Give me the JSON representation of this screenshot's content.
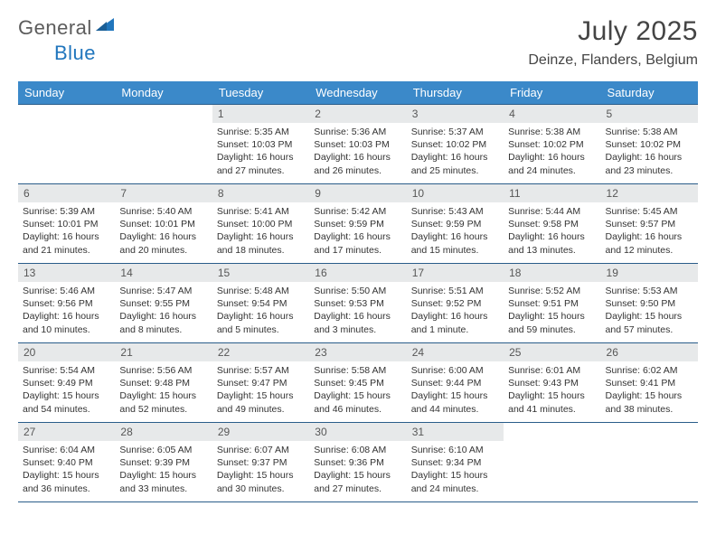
{
  "logo": {
    "word1": "General",
    "word2": "Blue"
  },
  "title": "July 2025",
  "location": "Deinze, Flanders, Belgium",
  "colors": {
    "header_bg": "#3b89c9",
    "header_text": "#ffffff",
    "daynum_bg": "#e7e9ea",
    "border": "#2a5d8a",
    "logo_gray": "#5c5c5c",
    "logo_blue": "#2176bd"
  },
  "day_names": [
    "Sunday",
    "Monday",
    "Tuesday",
    "Wednesday",
    "Thursday",
    "Friday",
    "Saturday"
  ],
  "weeks": [
    [
      null,
      null,
      {
        "n": "1",
        "sunrise": "5:35 AM",
        "sunset": "10:03 PM",
        "daylight": "16 hours and 27 minutes."
      },
      {
        "n": "2",
        "sunrise": "5:36 AM",
        "sunset": "10:03 PM",
        "daylight": "16 hours and 26 minutes."
      },
      {
        "n": "3",
        "sunrise": "5:37 AM",
        "sunset": "10:02 PM",
        "daylight": "16 hours and 25 minutes."
      },
      {
        "n": "4",
        "sunrise": "5:38 AM",
        "sunset": "10:02 PM",
        "daylight": "16 hours and 24 minutes."
      },
      {
        "n": "5",
        "sunrise": "5:38 AM",
        "sunset": "10:02 PM",
        "daylight": "16 hours and 23 minutes."
      }
    ],
    [
      {
        "n": "6",
        "sunrise": "5:39 AM",
        "sunset": "10:01 PM",
        "daylight": "16 hours and 21 minutes."
      },
      {
        "n": "7",
        "sunrise": "5:40 AM",
        "sunset": "10:01 PM",
        "daylight": "16 hours and 20 minutes."
      },
      {
        "n": "8",
        "sunrise": "5:41 AM",
        "sunset": "10:00 PM",
        "daylight": "16 hours and 18 minutes."
      },
      {
        "n": "9",
        "sunrise": "5:42 AM",
        "sunset": "9:59 PM",
        "daylight": "16 hours and 17 minutes."
      },
      {
        "n": "10",
        "sunrise": "5:43 AM",
        "sunset": "9:59 PM",
        "daylight": "16 hours and 15 minutes."
      },
      {
        "n": "11",
        "sunrise": "5:44 AM",
        "sunset": "9:58 PM",
        "daylight": "16 hours and 13 minutes."
      },
      {
        "n": "12",
        "sunrise": "5:45 AM",
        "sunset": "9:57 PM",
        "daylight": "16 hours and 12 minutes."
      }
    ],
    [
      {
        "n": "13",
        "sunrise": "5:46 AM",
        "sunset": "9:56 PM",
        "daylight": "16 hours and 10 minutes."
      },
      {
        "n": "14",
        "sunrise": "5:47 AM",
        "sunset": "9:55 PM",
        "daylight": "16 hours and 8 minutes."
      },
      {
        "n": "15",
        "sunrise": "5:48 AM",
        "sunset": "9:54 PM",
        "daylight": "16 hours and 5 minutes."
      },
      {
        "n": "16",
        "sunrise": "5:50 AM",
        "sunset": "9:53 PM",
        "daylight": "16 hours and 3 minutes."
      },
      {
        "n": "17",
        "sunrise": "5:51 AM",
        "sunset": "9:52 PM",
        "daylight": "16 hours and 1 minute."
      },
      {
        "n": "18",
        "sunrise": "5:52 AM",
        "sunset": "9:51 PM",
        "daylight": "15 hours and 59 minutes."
      },
      {
        "n": "19",
        "sunrise": "5:53 AM",
        "sunset": "9:50 PM",
        "daylight": "15 hours and 57 minutes."
      }
    ],
    [
      {
        "n": "20",
        "sunrise": "5:54 AM",
        "sunset": "9:49 PM",
        "daylight": "15 hours and 54 minutes."
      },
      {
        "n": "21",
        "sunrise": "5:56 AM",
        "sunset": "9:48 PM",
        "daylight": "15 hours and 52 minutes."
      },
      {
        "n": "22",
        "sunrise": "5:57 AM",
        "sunset": "9:47 PM",
        "daylight": "15 hours and 49 minutes."
      },
      {
        "n": "23",
        "sunrise": "5:58 AM",
        "sunset": "9:45 PM",
        "daylight": "15 hours and 46 minutes."
      },
      {
        "n": "24",
        "sunrise": "6:00 AM",
        "sunset": "9:44 PM",
        "daylight": "15 hours and 44 minutes."
      },
      {
        "n": "25",
        "sunrise": "6:01 AM",
        "sunset": "9:43 PM",
        "daylight": "15 hours and 41 minutes."
      },
      {
        "n": "26",
        "sunrise": "6:02 AM",
        "sunset": "9:41 PM",
        "daylight": "15 hours and 38 minutes."
      }
    ],
    [
      {
        "n": "27",
        "sunrise": "6:04 AM",
        "sunset": "9:40 PM",
        "daylight": "15 hours and 36 minutes."
      },
      {
        "n": "28",
        "sunrise": "6:05 AM",
        "sunset": "9:39 PM",
        "daylight": "15 hours and 33 minutes."
      },
      {
        "n": "29",
        "sunrise": "6:07 AM",
        "sunset": "9:37 PM",
        "daylight": "15 hours and 30 minutes."
      },
      {
        "n": "30",
        "sunrise": "6:08 AM",
        "sunset": "9:36 PM",
        "daylight": "15 hours and 27 minutes."
      },
      {
        "n": "31",
        "sunrise": "6:10 AM",
        "sunset": "9:34 PM",
        "daylight": "15 hours and 24 minutes."
      },
      null,
      null
    ]
  ],
  "labels": {
    "sunrise": "Sunrise: ",
    "sunset": "Sunset: ",
    "daylight": "Daylight: "
  }
}
